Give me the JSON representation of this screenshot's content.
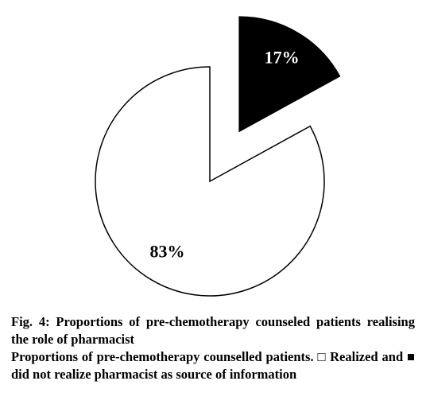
{
  "chart_data": {
    "type": "pie",
    "values": [
      17,
      83
    ],
    "value_labels": [
      "17%",
      "83%"
    ],
    "colors": [
      "#000000",
      "#ffffff"
    ],
    "label_colors": [
      "#ffffff",
      "#000000"
    ]
  },
  "caption": {
    "title": "Fig. 4: Proportions of pre-chemotherapy counseled patients realising the role of pharmacist",
    "text": "Proportions of pre-chemotherapy counselled patients. □ Realized and ■ did not realize pharmacist as source of information"
  }
}
